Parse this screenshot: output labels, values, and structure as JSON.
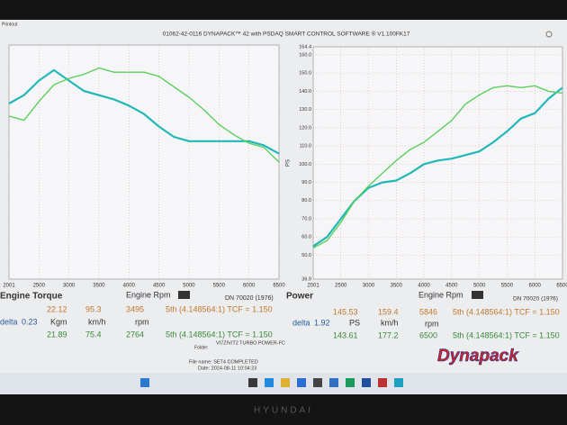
{
  "window": {
    "title": "01062-42-0116 DYNAPACK™ 42 with PSDAQ SMART CONTROL SOFTWARE ® V1.100FK17",
    "corner": "Printout"
  },
  "chart_data": [
    {
      "type": "line",
      "x": [
        2001,
        2250,
        2500,
        2750,
        3000,
        3250,
        3500,
        3750,
        4000,
        4250,
        4500,
        4750,
        5000,
        5250,
        5500,
        5750,
        6000,
        6250,
        6500
      ],
      "xlim": [
        2001,
        6500
      ],
      "xticks": [
        2001,
        2500,
        3000,
        3500,
        4000,
        4500,
        5000,
        5500,
        6000,
        6500
      ],
      "ylim": [
        12,
        23.2
      ],
      "grid": true,
      "series": [
        {
          "color": "#22b8b8",
          "values": [
            20.4,
            20.8,
            21.5,
            22.0,
            21.5,
            21.0,
            20.8,
            20.6,
            20.3,
            19.9,
            19.3,
            18.8,
            18.6,
            18.6,
            18.6,
            18.6,
            18.6,
            18.4,
            18.0
          ]
        },
        {
          "color": "#5ccf5c",
          "values": [
            19.8,
            19.6,
            20.5,
            21.3,
            21.6,
            21.8,
            22.1,
            21.9,
            21.9,
            21.9,
            21.7,
            21.2,
            20.7,
            20.1,
            19.4,
            18.9,
            18.5,
            18.3,
            17.6
          ]
        }
      ]
    },
    {
      "type": "line",
      "ylabel": "PS",
      "x": [
        2001,
        2250,
        2500,
        2750,
        3000,
        3250,
        3500,
        3750,
        4000,
        4250,
        4500,
        4750,
        5000,
        5250,
        5500,
        5750,
        6000,
        6250,
        6500
      ],
      "xlim": [
        2001,
        6500
      ],
      "xticks": [
        2001,
        2500,
        3000,
        3500,
        4000,
        4500,
        5000,
        5500,
        6000,
        6500
      ],
      "ylim": [
        36.9,
        164.4
      ],
      "yticks": [
        36.9,
        {
          "value": 50,
          "label": "50.0"
        },
        {
          "value": 60,
          "label": "60.0"
        },
        {
          "value": 70,
          "label": "70.0"
        },
        {
          "value": 80,
          "label": "80.0"
        },
        {
          "value": 90,
          "label": "90.0"
        },
        {
          "value": 100,
          "label": "100.0"
        },
        {
          "value": 110,
          "label": "110.0"
        },
        {
          "value": 120,
          "label": "120.0"
        },
        {
          "value": 130,
          "label": "130.0"
        },
        {
          "value": 140,
          "label": "140.0"
        },
        {
          "value": 150,
          "label": "150.0"
        },
        {
          "value": 160,
          "label": "160.0"
        },
        164.4
      ],
      "grid": true,
      "series": [
        {
          "color": "#22b8b8",
          "values": [
            55,
            60,
            70,
            80,
            87,
            90,
            91,
            95,
            100,
            102,
            103,
            105,
            107,
            112,
            118,
            125,
            128,
            136,
            142
          ]
        },
        {
          "color": "#5ccf5c",
          "values": [
            54,
            58,
            68,
            80,
            88,
            95,
            102,
            108,
            112,
            118,
            124,
            133,
            138,
            142,
            143,
            142,
            143,
            140,
            139
          ]
        }
      ]
    }
  ],
  "info": {
    "left": {
      "label": "Engine Torque",
      "rpm_label": "Engine Rpm",
      "standard": "DN 70020 (1976)",
      "max": [
        22.12,
        95.3,
        3495
      ],
      "delta_label": "delta",
      "delta": 0.23,
      "units": [
        "Kgm",
        "km/h",
        "rpm"
      ],
      "min": [
        21.89,
        75.4,
        2764
      ],
      "gear": "5th (4.148564:1) TCF = 1.150"
    },
    "right": {
      "label": "Power",
      "rpm_label": "Engine Rpm",
      "standard": "DN 70020 (1976)",
      "max": [
        145.53,
        159.4,
        5846
      ],
      "delta_label": "delta",
      "delta": 1.92,
      "units": [
        "PS",
        "km/h",
        "rpm"
      ],
      "min": [
        143.61,
        177.2,
        6500
      ],
      "gear": "5th (4.148564:1) TCF = 1.150"
    },
    "folder": "Folder:",
    "folder_name": "VI7ZIV/T2 TURBO POWER-FC",
    "file": "File name: SET4 COMPLETED",
    "date": "Date: 2024-08-11 10:04:23"
  },
  "logo": "Dynapack",
  "bezel": "HYUNDAI"
}
